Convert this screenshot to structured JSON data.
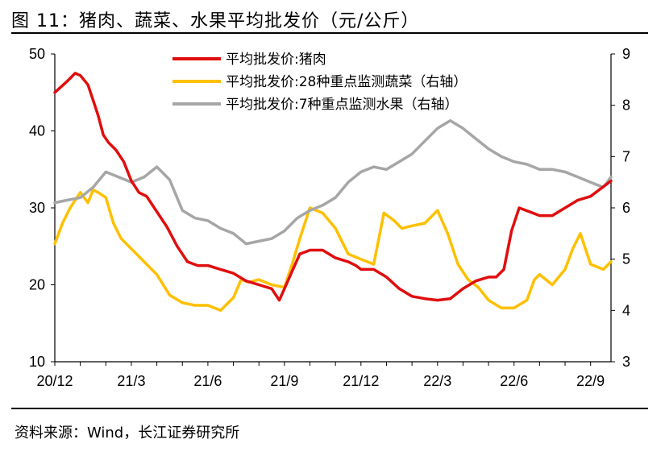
{
  "header": {
    "title": "图 11：猪肉、蔬菜、水果平均批发价（元/公斤）"
  },
  "footer": {
    "source": "资料来源：Wind，长江证券研究所"
  },
  "colors": {
    "pork": "#E00E0E",
    "vegetables": "#FFC000",
    "fruits": "#A6A6A6"
  },
  "chart_data": {
    "type": "line",
    "title": "猪肉、蔬菜、水果平均批发价（元/公斤）",
    "xlabel": "",
    "ylabel": "",
    "x_ticks": [
      "20/12",
      "21/3",
      "21/6",
      "21/9",
      "21/12",
      "22/3",
      "22/6",
      "22/9"
    ],
    "x_range_months": [
      0,
      21.8
    ],
    "y_left": {
      "lim": [
        10,
        50
      ],
      "ticks": [
        10,
        20,
        30,
        40,
        50
      ]
    },
    "y_right": {
      "lim": [
        3,
        9
      ],
      "ticks": [
        3,
        4,
        5,
        6,
        7,
        8,
        9
      ]
    },
    "legend_position": "top-center",
    "series": [
      {
        "name": "平均批发价:猪肉",
        "axis": "left",
        "color": "#E00E0E",
        "x": [
          0,
          0.5,
          0.8,
          1.0,
          1.3,
          1.5,
          1.7,
          1.9,
          2.1,
          2.4,
          2.7,
          3.0,
          3.3,
          3.6,
          4.0,
          4.4,
          4.8,
          5.2,
          5.6,
          6.0,
          6.5,
          7.0,
          7.5,
          8.0,
          8.5,
          8.8,
          9.0,
          9.2,
          9.6,
          10.0,
          10.5,
          11.0,
          11.5,
          11.8,
          12.0,
          12.5,
          13.0,
          13.5,
          14.0,
          14.5,
          15.0,
          15.5,
          16.0,
          16.5,
          17.0,
          17.3,
          17.6,
          17.9,
          18.2,
          18.6,
          19.0,
          19.5,
          20.0,
          20.5,
          21.0,
          21.4,
          21.8
        ],
        "values": [
          45,
          46.5,
          47.5,
          47.2,
          46,
          44,
          42,
          39.5,
          38.5,
          37.5,
          36,
          33.5,
          32,
          31.5,
          29.5,
          27.5,
          25,
          23,
          22.5,
          22.5,
          22,
          21.5,
          20.5,
          20,
          19.5,
          18,
          19.5,
          21,
          24,
          24.5,
          24.5,
          23.5,
          23,
          22.5,
          22,
          22,
          21,
          19.5,
          18.5,
          18.2,
          18.0,
          18.2,
          19.5,
          20.5,
          21,
          21,
          22,
          27,
          30,
          29.5,
          29,
          29,
          30,
          31,
          31.5,
          32.5,
          33.5
        ]
      },
      {
        "name": "平均批发价:28种重点监测蔬菜（右轴）",
        "axis": "right",
        "color": "#FFC000",
        "x": [
          0,
          0.3,
          0.6,
          1.0,
          1.3,
          1.5,
          1.7,
          2.0,
          2.3,
          2.6,
          3.0,
          3.5,
          4.0,
          4.5,
          5.0,
          5.5,
          6.0,
          6.5,
          7.0,
          7.3,
          7.6,
          8.0,
          8.5,
          9.0,
          9.3,
          9.6,
          10.0,
          10.5,
          11.0,
          11.5,
          12.0,
          12.5,
          12.9,
          13.3,
          13.6,
          14.0,
          14.5,
          15.0,
          15.4,
          15.8,
          16.2,
          16.6,
          17.0,
          17.5,
          18.0,
          18.5,
          18.8,
          19.0,
          19.5,
          20.0,
          20.3,
          20.6,
          21.0,
          21.5,
          21.8
        ],
        "values": [
          5.3,
          5.7,
          6.0,
          6.3,
          6.1,
          6.35,
          6.3,
          6.2,
          5.7,
          5.4,
          5.2,
          4.95,
          4.7,
          4.3,
          4.15,
          4.1,
          4.1,
          4.0,
          4.25,
          4.6,
          4.55,
          4.6,
          4.5,
          4.45,
          4.9,
          5.4,
          6.0,
          5.9,
          5.6,
          5.1,
          5.0,
          4.9,
          5.9,
          5.75,
          5.6,
          5.65,
          5.7,
          5.95,
          5.5,
          4.9,
          4.6,
          4.45,
          4.2,
          4.05,
          4.05,
          4.2,
          4.6,
          4.7,
          4.5,
          4.8,
          5.2,
          5.5,
          4.9,
          4.8,
          4.95
        ]
      },
      {
        "name": "平均批发价:7种重点监测水果（右轴）",
        "axis": "right",
        "color": "#A6A6A6",
        "x": [
          0,
          0.5,
          1.0,
          1.5,
          2.0,
          2.5,
          3.0,
          3.5,
          4.0,
          4.5,
          5.0,
          5.5,
          6.0,
          6.5,
          7.0,
          7.5,
          8.0,
          8.5,
          9.0,
          9.5,
          10.0,
          10.5,
          11.0,
          11.5,
          12.0,
          12.5,
          13.0,
          13.5,
          14.0,
          14.5,
          15.0,
          15.5,
          16.0,
          16.5,
          17.0,
          17.5,
          18.0,
          18.5,
          19.0,
          19.5,
          20.0,
          20.5,
          21.0,
          21.5,
          21.8
        ],
        "values": [
          6.1,
          6.15,
          6.2,
          6.4,
          6.7,
          6.6,
          6.5,
          6.6,
          6.8,
          6.55,
          5.95,
          5.8,
          5.75,
          5.6,
          5.5,
          5.3,
          5.35,
          5.4,
          5.55,
          5.8,
          5.95,
          6.05,
          6.2,
          6.5,
          6.7,
          6.8,
          6.75,
          6.9,
          7.05,
          7.3,
          7.55,
          7.7,
          7.55,
          7.35,
          7.15,
          7.0,
          6.9,
          6.85,
          6.75,
          6.75,
          6.7,
          6.6,
          6.5,
          6.4,
          6.6
        ]
      }
    ]
  }
}
